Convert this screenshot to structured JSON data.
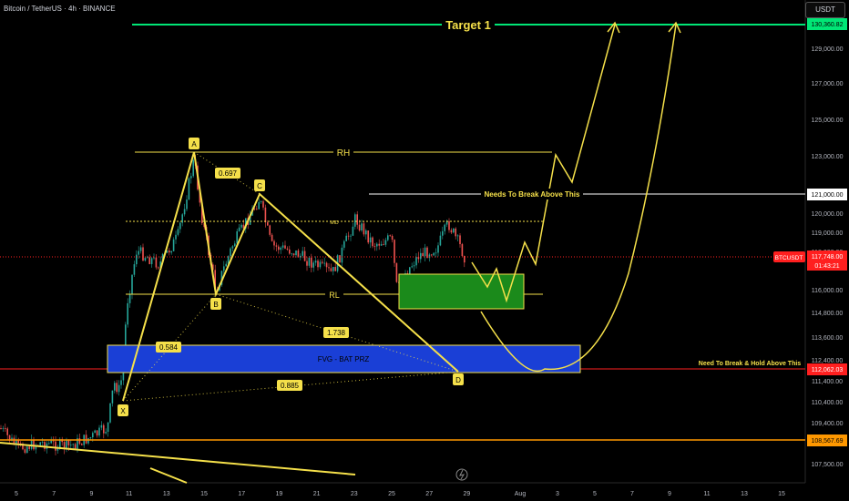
{
  "header": {
    "title": "Bitcoin / TetherUS · 4h · BINANCE",
    "unit": "USDT"
  },
  "colors": {
    "background": "#000000",
    "up_candle": "#26a69a",
    "down_candle": "#ef5350",
    "pattern": "#f5e04a",
    "target": "#00e676",
    "fvg_fill": "#1a3fd6",
    "zone_fill": "#1b8a1b",
    "red_line": "#ff1f1f",
    "orange_line": "#ff9800"
  },
  "chart_data": {
    "type": "candlestick",
    "x_ticks": [
      "5",
      "7",
      "9",
      "11",
      "13",
      "15",
      "17",
      "19",
      "21",
      "23",
      "25",
      "27",
      "29",
      "Aug",
      "3",
      "5",
      "7",
      "9",
      "11",
      "13",
      "15"
    ],
    "y_ticks": [
      "129,000.00",
      "127,000.00",
      "125,000.00",
      "123,000.00",
      "120,000.00",
      "119,000.00",
      "118,000.00",
      "116,000.00",
      "114,800.00",
      "113,600.00",
      "112,400.00",
      "111,400.00",
      "110,400.00",
      "109,400.00",
      "107,500.00"
    ],
    "price_labels": [
      {
        "text": "130,360.82",
        "value": 130360.82,
        "color": "#00e676"
      },
      {
        "text": "121,000.00",
        "value": 121000,
        "color": "#ffffff"
      },
      {
        "text": "117,748.00",
        "sub": "01:43:21",
        "value": 117748,
        "color": "#ff1f1f"
      },
      {
        "text": "112,062.03",
        "value": 112062.03,
        "color": "#ff1f1f"
      },
      {
        "text": "108,567.69",
        "value": 108567.69,
        "color": "#ff9800"
      }
    ],
    "symbol_tag": "BTCUSDT",
    "pattern_points": [
      {
        "label": "X",
        "x": "Jul 10",
        "y": 110800
      },
      {
        "label": "A",
        "x": "Jul 14",
        "y": 123200
      },
      {
        "label": "B",
        "x": "Jul 15",
        "y": 115800
      },
      {
        "label": "C",
        "x": "Jul 18",
        "y": 120800
      },
      {
        "label": "D",
        "x": "Jul 28",
        "y": 112000
      }
    ],
    "ratios": [
      {
        "label": "0.697"
      },
      {
        "label": "0.584"
      },
      {
        "label": "1.738"
      },
      {
        "label": "0.885"
      }
    ],
    "annotations": {
      "target": "Target 1",
      "rh": "RH",
      "rl": "RL",
      "mid": "MID",
      "break_above": "Needs To Break Above This",
      "fvg": "FVG - BAT PRZ",
      "break_hold": "Need To Break & Hold Above This"
    }
  }
}
